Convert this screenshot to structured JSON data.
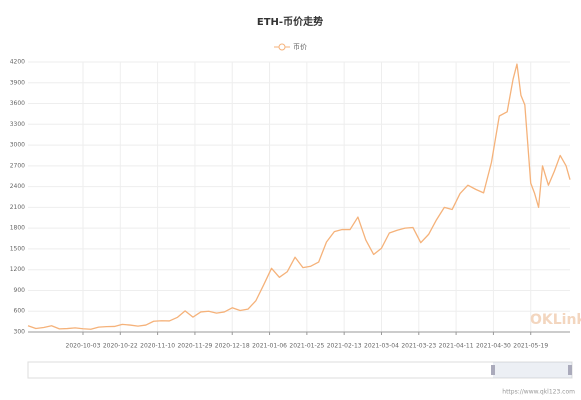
{
  "chart_data": {
    "type": "line",
    "title": "ETH-币价走势",
    "x": [
      "2020-09-05",
      "2020-09-09",
      "2020-09-13",
      "2020-09-17",
      "2020-09-21",
      "2020-09-25",
      "2020-09-29",
      "2020-10-03",
      "2020-10-07",
      "2020-10-11",
      "2020-10-15",
      "2020-10-19",
      "2020-10-23",
      "2020-10-27",
      "2020-10-31",
      "2020-11-04",
      "2020-11-08",
      "2020-11-12",
      "2020-11-16",
      "2020-11-20",
      "2020-11-24",
      "2020-11-28",
      "2020-12-02",
      "2020-12-06",
      "2020-12-10",
      "2020-12-14",
      "2020-12-18",
      "2020-12-22",
      "2020-12-26",
      "2020-12-30",
      "2021-01-03",
      "2021-01-07",
      "2021-01-11",
      "2021-01-15",
      "2021-01-19",
      "2021-01-23",
      "2021-01-27",
      "2021-01-31",
      "2021-02-04",
      "2021-02-08",
      "2021-02-12",
      "2021-02-16",
      "2021-02-20",
      "2021-02-24",
      "2021-02-28",
      "2021-03-04",
      "2021-03-08",
      "2021-03-12",
      "2021-03-16",
      "2021-03-20",
      "2021-03-24",
      "2021-03-28",
      "2021-04-01",
      "2021-04-05",
      "2021-04-09",
      "2021-04-13",
      "2021-04-17",
      "2021-04-21",
      "2021-04-25",
      "2021-04-29",
      "2021-05-03",
      "2021-05-07",
      "2021-05-10",
      "2021-05-12",
      "2021-05-14",
      "2021-05-16",
      "2021-05-19",
      "2021-05-21",
      "2021-05-23",
      "2021-05-25",
      "2021-05-28",
      "2021-05-31",
      "2021-06-03",
      "2021-06-06",
      "2021-06-08"
    ],
    "series": [
      {
        "name": "币价",
        "color": "#f5b27a",
        "values": [
          390,
          350,
          365,
          390,
          345,
          350,
          360,
          347,
          340,
          370,
          378,
          380,
          410,
          400,
          385,
          400,
          455,
          462,
          460,
          510,
          605,
          515,
          590,
          600,
          573,
          590,
          650,
          610,
          630,
          750,
          980,
          1220,
          1090,
          1170,
          1380,
          1230,
          1250,
          1310,
          1600,
          1750,
          1780,
          1780,
          1960,
          1630,
          1420,
          1510,
          1730,
          1770,
          1800,
          1810,
          1590,
          1710,
          1920,
          2100,
          2070,
          2300,
          2420,
          2360,
          2310,
          2750,
          3420,
          3480,
          3950,
          4170,
          3720,
          3580,
          2450,
          2300,
          2100,
          2700,
          2420,
          2620,
          2850,
          2700,
          2500
        ]
      }
    ],
    "xlim": [
      "2020-09-05",
      "2021-06-08"
    ],
    "xticks": [
      "2020-10-03",
      "2020-10-22",
      "2020-11-10",
      "2020-11-29",
      "2020-12-18",
      "2021-01-06",
      "2021-01-25",
      "2021-02-13",
      "2021-03-04",
      "2021-03-23",
      "2021-04-11",
      "2021-04-30",
      "2021-05-19"
    ],
    "ylim": [
      300,
      4200
    ],
    "yticks": [
      300,
      600,
      900,
      1200,
      1500,
      1800,
      2100,
      2400,
      2700,
      3000,
      3300,
      3600,
      3900,
      4200
    ],
    "grid": true
  },
  "watermark": "OKLink",
  "footer": "https://www.qkl123.com"
}
